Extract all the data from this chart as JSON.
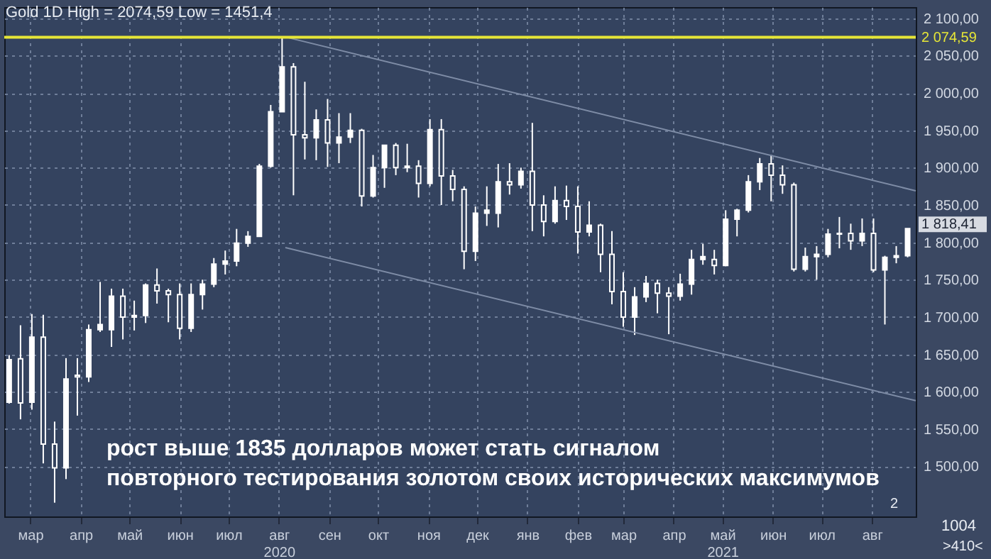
{
  "chart_data": {
    "type": "candlestick",
    "title": "Gold 1D  High = 2074,59 Low = 1451,4",
    "color": "#ffffff",
    "x": [
      "2020-02-17",
      "2020-02-24",
      "2020-03-02",
      "2020-03-09",
      "2020-03-16",
      "2020-03-23",
      "2020-03-30",
      "2020-04-06",
      "2020-04-13",
      "2020-04-20",
      "2020-04-27",
      "2020-05-04",
      "2020-05-11",
      "2020-05-18",
      "2020-05-25",
      "2020-06-01",
      "2020-06-08",
      "2020-06-15",
      "2020-06-22",
      "2020-06-29",
      "2020-07-06",
      "2020-07-13",
      "2020-07-20",
      "2020-07-27",
      "2020-08-03",
      "2020-08-10",
      "2020-08-17",
      "2020-08-24",
      "2020-08-31",
      "2020-09-07",
      "2020-09-14",
      "2020-09-21",
      "2020-09-28",
      "2020-10-05",
      "2020-10-12",
      "2020-10-19",
      "2020-10-26",
      "2020-11-02",
      "2020-11-09",
      "2020-11-16",
      "2020-11-23",
      "2020-11-30",
      "2020-12-07",
      "2020-12-14",
      "2020-12-21",
      "2020-12-28",
      "2021-01-04",
      "2021-01-11",
      "2021-01-18",
      "2021-01-25",
      "2021-02-01",
      "2021-02-08",
      "2021-02-15",
      "2021-02-22",
      "2021-03-01",
      "2021-03-08",
      "2021-03-15",
      "2021-03-22",
      "2021-03-29",
      "2021-04-05",
      "2021-04-12",
      "2021-04-19",
      "2021-04-26",
      "2021-05-03",
      "2021-05-10",
      "2021-05-17",
      "2021-05-24",
      "2021-05-31",
      "2021-06-07",
      "2021-06-14",
      "2021-06-21",
      "2021-06-28",
      "2021-07-05",
      "2021-07-12",
      "2021-07-19",
      "2021-07-26",
      "2021-08-02",
      "2021-08-09",
      "2021-08-16",
      "2021-08-23"
    ],
    "ohlc": [
      [
        1586,
        1649,
        1584,
        1643
      ],
      [
        1644,
        1689,
        1563,
        1585
      ],
      [
        1586,
        1704,
        1576,
        1673
      ],
      [
        1673,
        1703,
        1504,
        1530
      ],
      [
        1530,
        1560,
        1451.4,
        1498
      ],
      [
        1498,
        1645,
        1483,
        1617
      ],
      [
        1622,
        1645,
        1568,
        1620
      ],
      [
        1620,
        1690,
        1613,
        1683
      ],
      [
        1683,
        1747,
        1680,
        1690
      ],
      [
        1683,
        1738,
        1660,
        1728
      ],
      [
        1728,
        1738,
        1670,
        1700
      ],
      [
        1700,
        1722,
        1682,
        1702
      ],
      [
        1702,
        1745,
        1692,
        1743
      ],
      [
        1743,
        1765,
        1718,
        1735
      ],
      [
        1735,
        1738,
        1693,
        1730
      ],
      [
        1730,
        1745,
        1670,
        1685
      ],
      [
        1685,
        1745,
        1680,
        1730
      ],
      [
        1730,
        1750,
        1710,
        1744
      ],
      [
        1744,
        1779,
        1740,
        1771
      ],
      [
        1771,
        1789,
        1757,
        1775
      ],
      [
        1775,
        1818,
        1768,
        1799
      ],
      [
        1799,
        1815,
        1794,
        1808
      ],
      [
        1808,
        1905,
        1808,
        1902
      ],
      [
        1902,
        1984,
        1900,
        1975
      ],
      [
        1975,
        2074.59,
        1975,
        2035
      ],
      [
        2035,
        2040,
        1863,
        1944
      ],
      [
        1944,
        2015,
        1911,
        1940
      ],
      [
        1940,
        1978,
        1910,
        1964
      ],
      [
        1964,
        1992,
        1901,
        1933
      ],
      [
        1933,
        1973,
        1906,
        1941
      ],
      [
        1941,
        1973,
        1933,
        1950
      ],
      [
        1950,
        1952,
        1848,
        1862
      ],
      [
        1862,
        1917,
        1860,
        1900
      ],
      [
        1900,
        1930,
        1873,
        1930
      ],
      [
        1930,
        1933,
        1890,
        1900
      ],
      [
        1900,
        1932,
        1894,
        1902
      ],
      [
        1902,
        1910,
        1860,
        1879
      ],
      [
        1879,
        1965,
        1875,
        1951
      ],
      [
        1951,
        1965,
        1850,
        1889
      ],
      [
        1889,
        1897,
        1855,
        1871
      ],
      [
        1871,
        1875,
        1764,
        1788
      ],
      [
        1788,
        1848,
        1775,
        1839
      ],
      [
        1839,
        1875,
        1822,
        1843
      ],
      [
        1839,
        1905,
        1820,
        1881
      ],
      [
        1881,
        1906,
        1864,
        1877
      ],
      [
        1877,
        1900,
        1872,
        1895
      ],
      [
        1895,
        1960,
        1815,
        1850
      ],
      [
        1850,
        1863,
        1808,
        1828
      ],
      [
        1828,
        1875,
        1825,
        1856
      ],
      [
        1856,
        1876,
        1830,
        1848
      ],
      [
        1848,
        1875,
        1785,
        1814
      ],
      [
        1814,
        1855,
        1808,
        1823
      ],
      [
        1823,
        1825,
        1760,
        1784
      ],
      [
        1784,
        1815,
        1717,
        1734
      ],
      [
        1734,
        1760,
        1687,
        1700
      ],
      [
        1700,
        1740,
        1676,
        1727
      ],
      [
        1727,
        1755,
        1720,
        1745
      ],
      [
        1745,
        1750,
        1705,
        1732
      ],
      [
        1732,
        1740,
        1677,
        1728
      ],
      [
        1728,
        1758,
        1722,
        1744
      ],
      [
        1744,
        1790,
        1730,
        1777
      ],
      [
        1777,
        1798,
        1770,
        1781
      ],
      [
        1777,
        1790,
        1757,
        1769
      ],
      [
        1769,
        1843,
        1768,
        1831
      ],
      [
        1831,
        1845,
        1808,
        1843
      ],
      [
        1843,
        1890,
        1840,
        1881
      ],
      [
        1881,
        1913,
        1870,
        1905
      ],
      [
        1905,
        1917,
        1855,
        1890
      ],
      [
        1890,
        1903,
        1865,
        1877
      ],
      [
        1877,
        1880,
        1761,
        1764
      ],
      [
        1764,
        1793,
        1761,
        1781
      ],
      [
        1781,
        1795,
        1750,
        1784
      ],
      [
        1784,
        1818,
        1780,
        1811
      ],
      [
        1811,
        1834,
        1792,
        1812
      ],
      [
        1812,
        1825,
        1790,
        1802
      ],
      [
        1802,
        1832,
        1795,
        1812
      ],
      [
        1812,
        1832,
        1760,
        1763
      ],
      [
        1763,
        1782,
        1690,
        1780
      ],
      [
        1780,
        1795,
        1772,
        1782
      ],
      [
        1782,
        1818.41,
        1780,
        1818.41
      ]
    ],
    "series": [
      {
        "type": "line",
        "x": [
          "2020-08-05",
          "2021-08-28"
        ],
        "values": [
          2075,
          1869
        ],
        "color": "#7e8ca6"
      },
      {
        "type": "line",
        "x": [
          "2020-08-05",
          "2021-08-28"
        ],
        "values": [
          1793,
          1588
        ],
        "color": "#7e8ca6"
      }
    ],
    "xlim": [
      "2020-02-14",
      "2021-08-28"
    ],
    "xticks": [
      {
        "value": "2020-03-01",
        "label": "мар"
      },
      {
        "value": "2020-04-01",
        "label": "апр"
      },
      {
        "value": "2020-05-01",
        "label": "май"
      },
      {
        "value": "2020-06-01",
        "label": "июн"
      },
      {
        "value": "2020-07-01",
        "label": "июл"
      },
      {
        "value": "2020-08-01",
        "label": "авг\n2020"
      },
      {
        "value": "2020-09-01",
        "label": "сен"
      },
      {
        "value": "2020-10-01",
        "label": "окт"
      },
      {
        "value": "2020-11-01",
        "label": "ноя"
      },
      {
        "value": "2020-12-01",
        "label": "дек"
      },
      {
        "value": "2021-01-01",
        "label": "янв"
      },
      {
        "value": "2021-02-01",
        "label": "фев"
      },
      {
        "value": "2021-03-01",
        "label": "мар"
      },
      {
        "value": "2021-04-01",
        "label": "апр"
      },
      {
        "value": "2021-05-01",
        "label": "май\n2021"
      },
      {
        "value": "2021-06-01",
        "label": "июн"
      },
      {
        "value": "2021-07-01",
        "label": "июл"
      },
      {
        "value": "2021-08-01",
        "label": "авг"
      }
    ],
    "ylim": [
      1433,
      2115
    ],
    "yticks": [
      {
        "value": 1500,
        "label": "1 500,00"
      },
      {
        "value": 1550,
        "label": "1 550,00"
      },
      {
        "value": 1600,
        "label": "1 600,00"
      },
      {
        "value": 1650,
        "label": "1 650,00"
      },
      {
        "value": 1700,
        "label": "1 700,00"
      },
      {
        "value": 1750,
        "label": "1 750,00"
      },
      {
        "value": 1800,
        "label": "1 800,00"
      },
      {
        "value": 1850,
        "label": "1 850,00"
      },
      {
        "value": 1900,
        "label": "1 900,00"
      },
      {
        "value": 1950,
        "label": "1 950,00"
      },
      {
        "value": 2000,
        "label": "2 000,00"
      },
      {
        "value": 2050,
        "label": "2 050,00"
      },
      {
        "value": 2100,
        "label": "2 100,00"
      }
    ],
    "grid": true,
    "ref_lines": [
      {
        "axis": "y",
        "value": 2074.59,
        "label": "2 074,59",
        "color": "#e6e637"
      }
    ],
    "annotations": [
      "рост выше 1835 долларов может стать сигналом\nповторного тестирования золотом своих исторических максимумов",
      {
        "text": "1 818,41",
        "x": "2021-08-23",
        "y": 1818.41
      },
      "2",
      "1004",
      ">410<"
    ]
  }
}
